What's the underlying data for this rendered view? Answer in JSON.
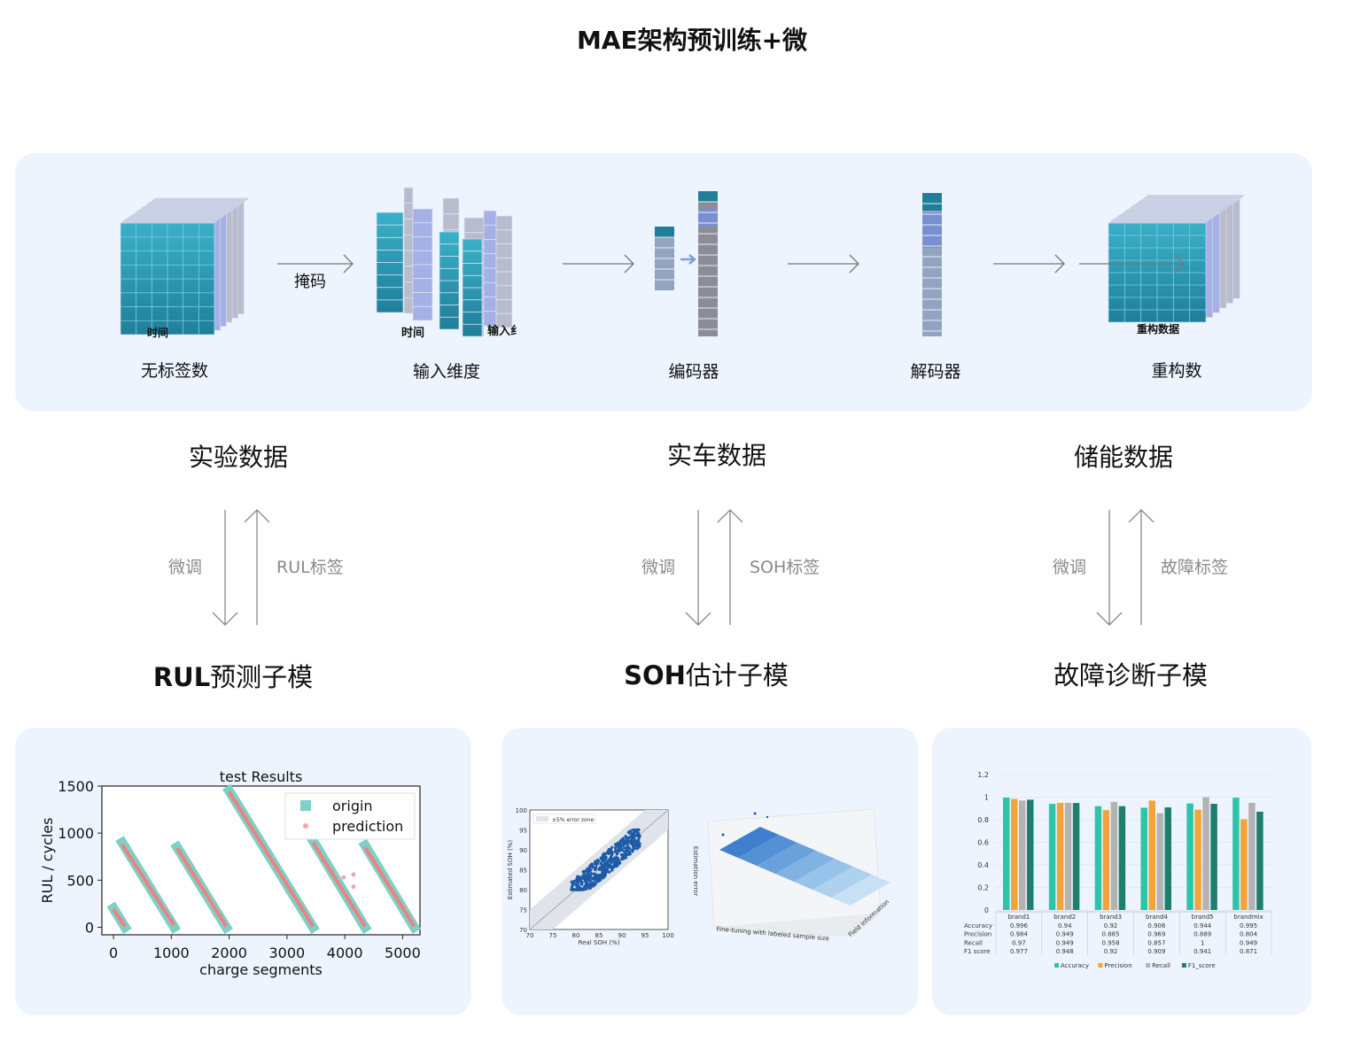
{
  "title": "MAE架构预训练+微",
  "pipeline": {
    "mask_label": "掩码",
    "time_axis_1": "时间",
    "time_axis_2": "时间",
    "input_axis": "输入纟",
    "recon_axis": "重构数据",
    "steps": [
      "无标签数",
      "输入维度",
      "编码器",
      "解码器",
      "重构数"
    ]
  },
  "datasets": [
    "实验数据",
    "实车数据",
    "储能数据"
  ],
  "finetune_label": "微调",
  "label_names": [
    "RUL标签",
    "SOH标签",
    "故障标签"
  ],
  "submodels": [
    {
      "bold": "RUL",
      "rest": "预测子模"
    },
    {
      "bold": "SOH",
      "rest": "估计子模"
    },
    {
      "bold": "",
      "rest": "故障诊断子模"
    }
  ],
  "colors": {
    "panel": "#eef4fe",
    "teal": "#2a9bb3",
    "lavender": "#a5b0e6",
    "gray": "#b8bccc"
  },
  "chart_data": [
    {
      "type": "scatter",
      "title": "test Results",
      "xlabel": "charge segments",
      "ylabel": "RUL / cycles",
      "xlim": [
        -200,
        5300
      ],
      "ylim": [
        -80,
        1500
      ],
      "xticks": [
        0,
        1000,
        2000,
        3000,
        4000,
        5000
      ],
      "yticks": [
        0,
        500,
        1000,
        1500
      ],
      "legend": "top-right",
      "series": [
        {
          "name": "origin",
          "color": "#7ecfc6",
          "segments": [
            [
              [
                0,
                200
              ],
              [
                200,
                0
              ]
            ],
            [
              [
                150,
                900
              ],
              [
                1050,
                0
              ]
            ],
            [
              [
                1100,
                850
              ],
              [
                1950,
                0
              ]
            ],
            [
              [
                2000,
                1450
              ],
              [
                3450,
                0
              ]
            ],
            [
              [
                3450,
                920
              ],
              [
                4350,
                0
              ]
            ],
            [
              [
                4350,
                870
              ],
              [
                5200,
                0
              ]
            ]
          ]
        },
        {
          "name": "prediction",
          "color": "#f08080",
          "segments": [
            [
              [
                0,
                190
              ],
              [
                200,
                10
              ]
            ],
            [
              [
                150,
                880
              ],
              [
                1050,
                20
              ]
            ],
            [
              [
                1100,
                840
              ],
              [
                1950,
                10
              ]
            ],
            [
              [
                2000,
                1440
              ],
              [
                3450,
                10
              ]
            ],
            [
              [
                3450,
                900
              ],
              [
                4350,
                10
              ]
            ],
            [
              [
                4350,
                850
              ],
              [
                5200,
                10
              ]
            ]
          ],
          "outliers": [
            [
              3980,
              530
            ],
            [
              4150,
              560
            ],
            [
              4150,
              430
            ]
          ]
        }
      ]
    },
    {
      "type": "scatter",
      "xlabel": "Real SOH (%)",
      "ylabel": "Estimated SOH (%)",
      "xlim": [
        70,
        100
      ],
      "ylim": [
        70,
        100
      ],
      "xticks": [
        70,
        75,
        80,
        85,
        90,
        95,
        100
      ],
      "yticks": [
        70,
        75,
        80,
        85,
        90,
        95,
        100
      ],
      "legend_text": "±5% error zone",
      "point_range": [
        [
          79,
          94
        ],
        [
          80,
          95
        ]
      ]
    },
    {
      "type": "surface",
      "zlabel": "Estimation error",
      "xlabel": "Fine-tuning with labeled sample size",
      "ylabel": "Field information"
    },
    {
      "type": "bar",
      "categories": [
        "brand1",
        "brand2",
        "brand3",
        "brand4",
        "brand5",
        "brandmix"
      ],
      "ylim": [
        0,
        1.2
      ],
      "yticks": [
        0,
        0.2,
        0.4,
        0.6,
        0.8,
        1,
        1.2
      ],
      "series": [
        {
          "name": "Accuracy",
          "color": "#2ec4a9",
          "values": [
            0.996,
            0.94,
            0.92,
            0.906,
            0.944,
            0.995
          ]
        },
        {
          "name": "Precision",
          "color": "#f2a33a",
          "values": [
            0.984,
            0.949,
            0.885,
            0.969,
            0.889,
            0.804
          ]
        },
        {
          "name": "Recall",
          "color": "#b3b3b3",
          "values": [
            0.97,
            0.949,
            0.958,
            0.857,
            1,
            0.949
          ]
        },
        {
          "name": "F1_score",
          "color": "#1e7f6e",
          "values": [
            0.977,
            0.948,
            0.92,
            0.909,
            0.941,
            0.871
          ]
        }
      ],
      "table_rows": [
        "Accuracy",
        "Precision",
        "Recall",
        "F1_score"
      ],
      "table": [
        [
          "0.996",
          "0.94",
          "0.92",
          "0.906",
          "0.944",
          "0.995"
        ],
        [
          "0.984",
          "0.949",
          "0.885",
          "0.969",
          "0.889",
          "0.804"
        ],
        [
          "0.97",
          "0.949",
          "0.958",
          "0.857",
          "1",
          "0.949"
        ],
        [
          "0.977",
          "0.948",
          "0.92",
          "0.909",
          "0.941",
          "0.871"
        ]
      ]
    }
  ]
}
